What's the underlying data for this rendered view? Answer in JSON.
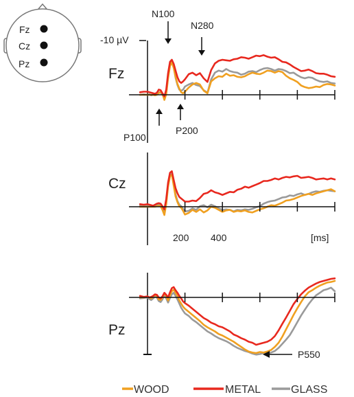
{
  "chart_data": {
    "type": "line",
    "xlabel": "[ms]",
    "x_tick_labels": [
      "200",
      "400"
    ],
    "y_scale_label": "-10 µV",
    "series_names": [
      "WOOD",
      "METAL",
      "GLASS"
    ],
    "colors": {
      "WOOD": "#f0a020",
      "METAL": "#e8281e",
      "GLASS": "#9a9a9a"
    },
    "legend_position": "bottom",
    "electrode_map": [
      "Fz",
      "Cz",
      "Pz"
    ],
    "panels": [
      {
        "channel": "Fz",
        "annotations": [
          "N100",
          "N280",
          "P100",
          "P200"
        ],
        "x": [
          -40,
          -20,
          0,
          10,
          20,
          30,
          40,
          50,
          60,
          70,
          80,
          90,
          100,
          110,
          120,
          130,
          140,
          150,
          160,
          170,
          180,
          190,
          200,
          220,
          240,
          260,
          280,
          300,
          320,
          340,
          360,
          380,
          400,
          420,
          440,
          460,
          480,
          500,
          520,
          540,
          560,
          580,
          600,
          620,
          640,
          660,
          680,
          700,
          720,
          740,
          760,
          780,
          800,
          820,
          840,
          860,
          880,
          900,
          920,
          940,
          960,
          980,
          1000
        ],
        "series": [
          {
            "name": "WOOD",
            "values": [
              0,
              0,
              0,
              0,
              0,
              0,
              -0.1,
              0,
              0.3,
              0.6,
              0.2,
              -1.0,
              0.1,
              3.2,
              5.6,
              6.3,
              5.2,
              3.5,
              2.1,
              1.2,
              0.5,
              0.3,
              0.6,
              1.4,
              2.0,
              2.3,
              2.0,
              0.8,
              0.3,
              2.6,
              3.2,
              3.6,
              3.5,
              4.1,
              3.7,
              3.8,
              3.5,
              3.4,
              3.6,
              4.0,
              4.3,
              4.1,
              4.0,
              4.3,
              4.7,
              4.6,
              4.3,
              4.6,
              4.4,
              3.7,
              3.2,
              2.9,
              2.5,
              1.8,
              1.5,
              1.3,
              1.4,
              1.6,
              1.5,
              1.9,
              2.1,
              2.0,
              1.8
            ]
          },
          {
            "name": "METAL",
            "values": [
              0.5,
              0.6,
              0.6,
              0.5,
              0.4,
              0.3,
              0.2,
              0.4,
              1.0,
              0.9,
              0.3,
              -0.3,
              1.0,
              4.2,
              6.4,
              6.8,
              6.0,
              4.7,
              3.4,
              2.6,
              2.3,
              2.6,
              3.0,
              4.0,
              4.3,
              3.8,
              4.2,
              3.2,
              2.5,
              4.8,
              6.1,
              6.6,
              6.8,
              6.7,
              6.6,
              6.9,
              7.0,
              7.3,
              7.2,
              7.0,
              7.3,
              7.6,
              7.5,
              7.7,
              7.4,
              7.2,
              7.3,
              6.9,
              6.4,
              6.3,
              5.9,
              5.4,
              5.0,
              4.6,
              4.7,
              4.9,
              4.6,
              4.2,
              4.1,
              4.1,
              3.9,
              3.6,
              3.5
            ]
          },
          {
            "name": "GLASS",
            "values": [
              0,
              0.1,
              0,
              0.1,
              -0.1,
              0,
              0,
              0.2,
              0.5,
              0.4,
              0,
              -0.7,
              0.4,
              3.6,
              5.9,
              6.5,
              5.4,
              3.3,
              1.9,
              1.0,
              0.8,
              1.0,
              1.6,
              2.0,
              2.3,
              1.9,
              1.7,
              0.9,
              0.4,
              3.0,
              4.3,
              4.7,
              4.5,
              5.0,
              4.6,
              4.4,
              4.3,
              3.9,
              4.1,
              4.5,
              4.6,
              4.4,
              4.8,
              5.1,
              5.2,
              5.0,
              4.7,
              5.0,
              4.9,
              4.6,
              4.2,
              4.3,
              3.8,
              3.4,
              3.2,
              3.4,
              3.3,
              2.9,
              2.6,
              2.5,
              2.6,
              2.3,
              2.2
            ]
          }
        ]
      },
      {
        "channel": "Cz",
        "annotations": [],
        "x": [
          -40,
          -20,
          0,
          10,
          20,
          30,
          40,
          50,
          60,
          70,
          80,
          90,
          100,
          110,
          120,
          130,
          140,
          150,
          160,
          170,
          180,
          190,
          200,
          220,
          240,
          260,
          280,
          300,
          320,
          340,
          360,
          380,
          400,
          420,
          440,
          460,
          480,
          500,
          520,
          540,
          560,
          580,
          600,
          620,
          640,
          660,
          680,
          700,
          720,
          740,
          760,
          780,
          800,
          820,
          840,
          860,
          880,
          900,
          920,
          940,
          960,
          980,
          1000
        ],
        "series": [
          {
            "name": "WOOD",
            "values": [
              0,
              0,
              0,
              0,
              0,
              0,
              0,
              0.1,
              0.2,
              0.1,
              -0.6,
              -1.6,
              0.5,
              3.9,
              5.9,
              6.2,
              4.1,
              2.0,
              0.9,
              0.1,
              -0.2,
              -0.8,
              -1.5,
              -1.2,
              -0.6,
              -1.0,
              -0.5,
              -1.1,
              -0.7,
              0,
              -0.2,
              -0.6,
              -1.0,
              -0.7,
              -0.6,
              -1.0,
              -0.8,
              -0.9,
              -0.7,
              -1.0,
              -1.1,
              -0.8,
              -0.5,
              -0.3,
              0,
              0.3,
              0.2,
              0.5,
              0.8,
              1.2,
              1.3,
              1.5,
              1.8,
              2.1,
              2.3,
              2.5,
              2.3,
              2.6,
              2.8,
              3.0,
              3.2,
              3.4,
              3.0
            ]
          },
          {
            "name": "METAL",
            "values": [
              0.5,
              0.4,
              0.5,
              0.4,
              0.3,
              0.2,
              0.4,
              0.6,
              0.7,
              0.6,
              0.1,
              -0.5,
              1.5,
              4.7,
              6.6,
              6.9,
              5.2,
              3.6,
              2.6,
              1.9,
              1.6,
              1.3,
              1.0,
              1.0,
              1.2,
              1.1,
              1.7,
              2.5,
              2.7,
              3.2,
              2.8,
              2.6,
              2.3,
              2.6,
              2.9,
              2.8,
              3.3,
              3.5,
              3.9,
              3.7,
              4.0,
              4.3,
              4.6,
              5.0,
              5.0,
              5.2,
              5.5,
              5.3,
              5.6,
              5.8,
              5.7,
              5.9,
              6.0,
              5.6,
              5.7,
              5.8,
              5.6,
              5.3,
              5.4,
              5.5,
              5.3,
              5.5,
              5.3
            ]
          },
          {
            "name": "GLASS",
            "values": [
              0.2,
              0.2,
              0.1,
              0.2,
              0.1,
              0.1,
              0.2,
              0.3,
              0.5,
              0.2,
              -0.3,
              -1.1,
              1.0,
              4.2,
              6.1,
              6.4,
              4.6,
              2.4,
              1.1,
              0.4,
              0.1,
              -0.4,
              -0.9,
              -0.8,
              -0.3,
              -0.6,
              0.1,
              0.3,
              -0.1,
              0.4,
              0.1,
              -0.3,
              -0.6,
              -0.5,
              -0.6,
              -0.9,
              -0.6,
              -0.7,
              -0.5,
              -0.6,
              -0.4,
              -0.1,
              0.1,
              0.6,
              0.9,
              1.1,
              1.2,
              1.5,
              1.8,
              1.9,
              2.2,
              2.1,
              2.4,
              2.6,
              2.3,
              2.5,
              2.8,
              3.0,
              2.9,
              3.1,
              3.2,
              3.1,
              3.0
            ]
          }
        ]
      },
      {
        "channel": "Pz",
        "annotations": [
          "P550"
        ],
        "x": [
          -40,
          -20,
          0,
          10,
          20,
          30,
          40,
          50,
          60,
          70,
          80,
          90,
          100,
          110,
          120,
          130,
          140,
          150,
          160,
          170,
          180,
          190,
          200,
          220,
          240,
          260,
          280,
          300,
          320,
          340,
          360,
          380,
          400,
          420,
          440,
          460,
          480,
          500,
          520,
          540,
          560,
          580,
          600,
          620,
          640,
          660,
          680,
          700,
          720,
          740,
          760,
          780,
          800,
          820,
          840,
          860,
          880,
          900,
          920,
          940,
          960,
          980,
          1000
        ],
        "series": [
          {
            "name": "WOOD",
            "values": [
              0,
              0,
              0.2,
              0,
              -0.2,
              0.1,
              0.5,
              0.3,
              -0.4,
              -0.5,
              0,
              0.8,
              0.2,
              -0.6,
              0.4,
              1.2,
              1.5,
              0.9,
              0.3,
              -0.6,
              -1.2,
              -1.8,
              -2.2,
              -2.8,
              -3.4,
              -4.0,
              -4.6,
              -5.3,
              -5.8,
              -6.2,
              -6.6,
              -7.1,
              -7.4,
              -7.8,
              -8.2,
              -8.6,
              -9.1,
              -9.6,
              -10.1,
              -10.5,
              -10.7,
              -10.8,
              -10.6,
              -10.7,
              -10.5,
              -10.2,
              -9.6,
              -8.8,
              -7.6,
              -6.2,
              -4.8,
              -3.4,
              -2.1,
              -0.9,
              0.2,
              1.0,
              1.4,
              1.9,
              2.3,
              2.6,
              2.9,
              3.0,
              3.2
            ]
          },
          {
            "name": "METAL",
            "values": [
              0.3,
              0.1,
              0.2,
              0,
              0.1,
              0.3,
              0.6,
              0.5,
              0,
              -0.2,
              0.2,
              0.9,
              0.5,
              0,
              1.0,
              1.8,
              2.0,
              1.4,
              0.9,
              0.3,
              -0.2,
              -0.8,
              -1.1,
              -1.6,
              -2.2,
              -2.8,
              -3.4,
              -4.0,
              -4.4,
              -4.9,
              -5.2,
              -5.6,
              -5.8,
              -6.2,
              -6.6,
              -7.2,
              -7.5,
              -7.9,
              -8.2,
              -8.6,
              -8.8,
              -9.2,
              -9.0,
              -8.8,
              -8.6,
              -8.2,
              -7.5,
              -6.4,
              -5.1,
              -3.9,
              -2.6,
              -1.3,
              -0.3,
              0.6,
              1.3,
              1.9,
              2.3,
              2.7,
              3.0,
              3.2,
              3.4,
              3.6,
              3.7
            ]
          },
          {
            "name": "GLASS",
            "values": [
              -0.2,
              -0.1,
              0,
              -0.3,
              -0.5,
              -0.2,
              0.2,
              0,
              -0.7,
              -0.9,
              -0.4,
              0.4,
              -0.2,
              -1.0,
              -0.1,
              0.6,
              0.9,
              0.3,
              -0.4,
              -1.2,
              -2.0,
              -2.6,
              -3.1,
              -3.6,
              -4.3,
              -4.8,
              -5.4,
              -6.0,
              -6.6,
              -7.0,
              -7.5,
              -7.9,
              -8.2,
              -8.5,
              -8.9,
              -9.4,
              -9.8,
              -10.1,
              -10.4,
              -10.6,
              -10.9,
              -11.1,
              -11.0,
              -10.8,
              -10.9,
              -10.7,
              -10.4,
              -9.8,
              -9.0,
              -8.2,
              -7.3,
              -6.1,
              -4.8,
              -3.5,
              -2.4,
              -1.3,
              -0.4,
              0.4,
              0.9,
              1.4,
              1.6,
              1.9,
              1.2
            ]
          }
        ]
      }
    ]
  }
}
